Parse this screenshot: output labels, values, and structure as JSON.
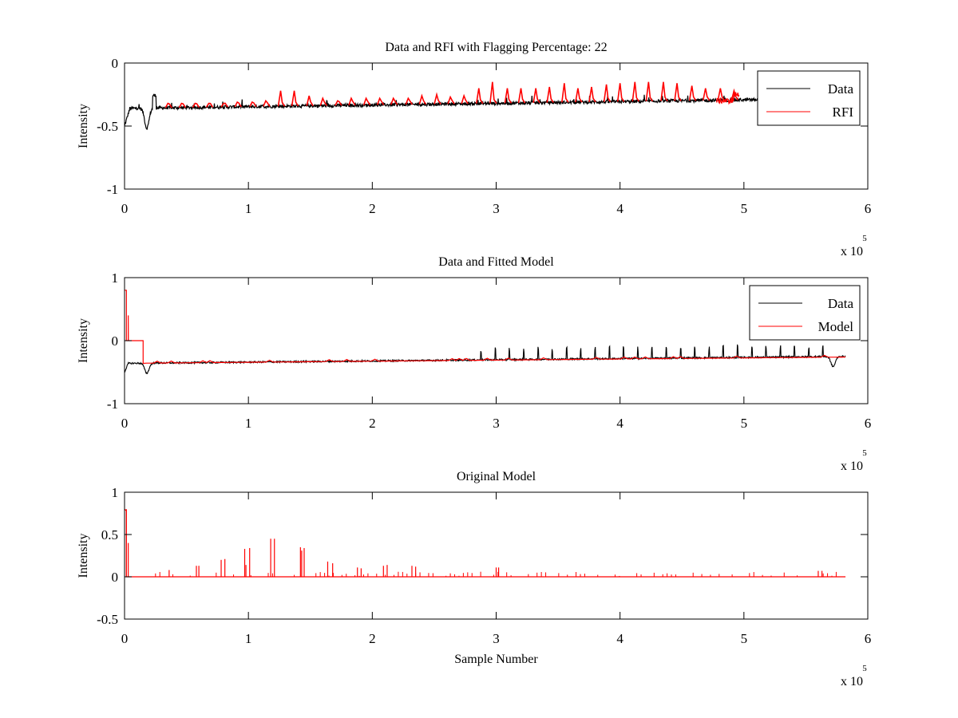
{
  "chart_data": [
    {
      "type": "line",
      "title": "Data and RFI with Flagging Percentage: 22",
      "xlabel": "",
      "ylabel": "Intensity",
      "xlim": [
        0,
        600000
      ],
      "ylim": [
        -1,
        0
      ],
      "xticks": [
        "0",
        "1",
        "2",
        "3",
        "4",
        "5",
        "6"
      ],
      "yticks": [
        "0",
        "-0.5",
        "-1"
      ],
      "x_exponent": {
        "base": "x 10",
        "power": "5"
      },
      "legend": {
        "position": "top-right",
        "entries": [
          "Data",
          "RFI"
        ]
      },
      "series": [
        {
          "name": "Data",
          "color": "#000000",
          "baseline_start": -0.36,
          "baseline_end": -0.29,
          "x_end": 520000,
          "dip_x": 18000,
          "dip_y": -0.52
        },
        {
          "name": "RFI",
          "color": "#ff0000",
          "spike_x": [
            35000,
            46000,
            57000,
            68000,
            80000,
            91000,
            103000,
            114000,
            126000,
            137000,
            149000,
            160000,
            172000,
            183000,
            195000,
            206000,
            217000,
            229000,
            240000,
            252000,
            263000,
            274000,
            286000,
            297000,
            309000,
            320000,
            332000,
            343000,
            355000,
            366000,
            377000,
            389000,
            400000,
            412000,
            423000,
            435000,
            446000,
            458000,
            469000,
            481000,
            492000
          ],
          "spike_y": [
            -0.32,
            -0.32,
            -0.32,
            -0.32,
            -0.32,
            -0.31,
            -0.31,
            -0.3,
            -0.22,
            -0.22,
            -0.26,
            -0.28,
            -0.3,
            -0.28,
            -0.28,
            -0.28,
            -0.28,
            -0.28,
            -0.26,
            -0.25,
            -0.27,
            -0.26,
            -0.2,
            -0.15,
            -0.2,
            -0.2,
            -0.2,
            -0.19,
            -0.16,
            -0.2,
            -0.19,
            -0.17,
            -0.16,
            -0.15,
            -0.15,
            -0.15,
            -0.16,
            -0.18,
            -0.2,
            -0.2,
            -0.22
          ]
        }
      ]
    },
    {
      "type": "line",
      "title": "Data and Fitted Model",
      "xlabel": "",
      "ylabel": "Intensity",
      "xlim": [
        0,
        600000
      ],
      "ylim": [
        -1,
        1
      ],
      "xticks": [
        "0",
        "1",
        "2",
        "3",
        "4",
        "5",
        "6"
      ],
      "yticks": [
        "1",
        "0",
        "-1"
      ],
      "x_exponent": {
        "base": "x 10",
        "power": "5"
      },
      "legend": {
        "position": "top-right",
        "entries": [
          "Data",
          "Model"
        ]
      },
      "series": [
        {
          "name": "Data",
          "color": "#000000",
          "x_end": 582000
        },
        {
          "name": "Model",
          "color": "#ff0000",
          "x_end": 582000,
          "initial_level": 0.8,
          "step_level": 0.0,
          "step_end_x": 15000
        }
      ]
    },
    {
      "type": "line",
      "title": "Original Model",
      "xlabel": "Sample Number",
      "ylabel": "Intensity",
      "xlim": [
        0,
        600000
      ],
      "ylim": [
        -0.5,
        1
      ],
      "xticks": [
        "0",
        "1",
        "2",
        "3",
        "4",
        "5",
        "6"
      ],
      "yticks": [
        "1",
        "0.5",
        "0",
        "-0.5"
      ],
      "x_exponent": {
        "base": "x 10",
        "power": "5"
      },
      "series": [
        {
          "name": "Original Model",
          "color": "#ff0000",
          "x_end": 582000,
          "spike_x": [
            1500,
            3000,
            36000,
            58000,
            60000,
            78000,
            81000,
            97000,
            98000,
            101000,
            118000,
            121000,
            142000,
            143000,
            145000,
            164000,
            168000,
            188000,
            191000,
            209000,
            212000,
            232000,
            235000,
            300000,
            302000,
            560000,
            563000
          ],
          "spike_y": [
            0.8,
            0.4,
            0.08,
            0.13,
            0.13,
            0.2,
            0.21,
            0.33,
            0.14,
            0.34,
            0.45,
            0.45,
            0.35,
            0.31,
            0.34,
            0.18,
            0.16,
            0.11,
            0.1,
            0.13,
            0.14,
            0.13,
            0.12,
            0.11,
            0.11,
            0.07,
            0.07
          ]
        }
      ]
    }
  ]
}
